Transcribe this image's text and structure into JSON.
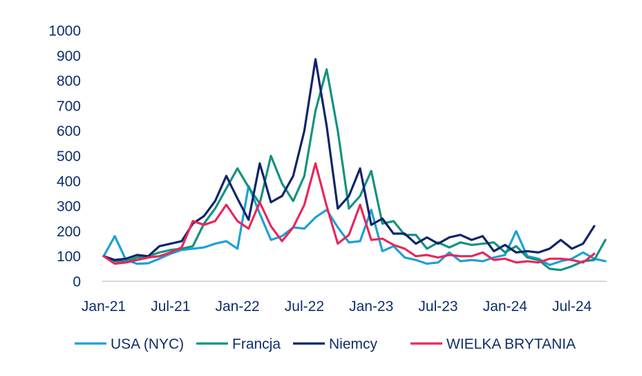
{
  "chart_data": {
    "type": "line",
    "title": "",
    "xlabel": "",
    "ylabel": "",
    "ylim": [
      0,
      1000
    ],
    "yticks": [
      0,
      100,
      200,
      300,
      400,
      500,
      600,
      700,
      800,
      900,
      1000
    ],
    "y_tick_labels": [
      "0",
      "100",
      "200",
      "300",
      "400",
      "500",
      "600",
      "700",
      "800",
      "900",
      "1000"
    ],
    "x_tick_labels": [
      "Jan-21",
      "Jul-21",
      "Jan-22",
      "Jul-22",
      "Jan-23",
      "Jul-23",
      "Jan-24",
      "Jul-24"
    ],
    "grid": false,
    "legend_position": "bottom",
    "x": [
      "2021-01",
      "2021-02",
      "2021-03",
      "2021-04",
      "2021-05",
      "2021-06",
      "2021-07",
      "2021-08",
      "2021-09",
      "2021-10",
      "2021-11",
      "2021-12",
      "2022-01",
      "2022-02",
      "2022-03",
      "2022-04",
      "2022-05",
      "2022-06",
      "2022-07",
      "2022-08",
      "2022-09",
      "2022-10",
      "2022-11",
      "2022-12",
      "2023-01",
      "2023-02",
      "2023-03",
      "2023-04",
      "2023-05",
      "2023-06",
      "2023-07",
      "2023-08",
      "2023-09",
      "2023-10",
      "2023-11",
      "2023-12",
      "2024-01",
      "2024-02",
      "2024-03",
      "2024-04",
      "2024-05",
      "2024-06",
      "2024-07",
      "2024-08",
      "2024-09",
      "2024-10"
    ],
    "series": [
      {
        "name": "USA (NYC)",
        "color": "#1BA1D6",
        "values": [
          100,
          180,
          85,
          70,
          72,
          90,
          110,
          125,
          130,
          135,
          150,
          160,
          130,
          380,
          270,
          165,
          180,
          215,
          210,
          255,
          285,
          215,
          155,
          160,
          285,
          120,
          140,
          95,
          85,
          70,
          75,
          115,
          80,
          85,
          80,
          95,
          105,
          200,
          100,
          90,
          65,
          80,
          90,
          115,
          90,
          80
        ]
      },
      {
        "name": "Francja",
        "color": "#14927F",
        "values": [
          100,
          80,
          80,
          95,
          100,
          115,
          125,
          130,
          140,
          230,
          290,
          370,
          450,
          375,
          310,
          500,
          390,
          320,
          420,
          680,
          845,
          600,
          290,
          340,
          440,
          230,
          240,
          185,
          185,
          130,
          155,
          135,
          155,
          145,
          150,
          155,
          115,
          140,
          95,
          85,
          50,
          45,
          60,
          80,
          85,
          165
        ]
      },
      {
        "name": "Niemcy",
        "color": "#10246A",
        "values": [
          100,
          85,
          90,
          105,
          100,
          140,
          150,
          160,
          230,
          260,
          320,
          420,
          330,
          245,
          470,
          315,
          340,
          420,
          600,
          885,
          620,
          290,
          340,
          450,
          225,
          250,
          190,
          190,
          150,
          175,
          150,
          175,
          185,
          165,
          180,
          120,
          145,
          115,
          120,
          115,
          130,
          165,
          130,
          150,
          220,
          null
        ]
      },
      {
        "name": "WIELKA BRYTANIA",
        "color": "#E8275C",
        "values": [
          100,
          70,
          75,
          85,
          95,
          100,
          115,
          135,
          240,
          225,
          240,
          305,
          240,
          210,
          315,
          220,
          160,
          215,
          305,
          470,
          300,
          150,
          185,
          305,
          165,
          170,
          145,
          130,
          100,
          105,
          95,
          105,
          100,
          100,
          115,
          85,
          90,
          75,
          80,
          75,
          90,
          90,
          85,
          75,
          110,
          null
        ]
      }
    ]
  }
}
